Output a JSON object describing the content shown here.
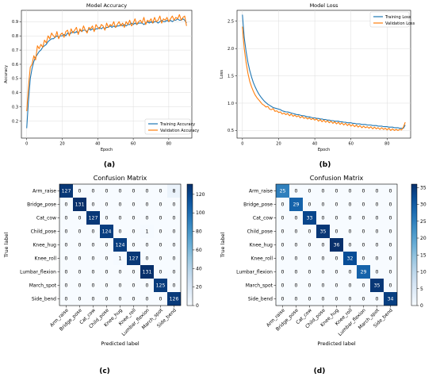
{
  "panels": {
    "a": "(a)",
    "b": "(b)",
    "c": "(c)",
    "d": "(d)"
  },
  "chart_data": [
    {
      "type": "line",
      "panel": "a",
      "title": "Model Accuracy",
      "xlabel": "Epoch",
      "ylabel": "Accuracy",
      "xlim": [
        -3,
        93
      ],
      "ylim": [
        0.08,
        0.98
      ],
      "xticks": [
        0,
        20,
        40,
        60,
        80
      ],
      "yticks": [
        0.2,
        0.3,
        0.4,
        0.5,
        0.6,
        0.7,
        0.8,
        0.9
      ],
      "legend_position": "lower-right",
      "series": [
        {
          "name": "Training Accuracy",
          "color": "#1f77b4",
          "x": [
            0,
            1,
            2,
            3,
            4,
            5,
            6,
            7,
            8,
            9,
            10,
            11,
            12,
            13,
            14,
            15,
            16,
            17,
            18,
            19,
            20,
            21,
            22,
            23,
            24,
            25,
            26,
            27,
            28,
            29,
            30,
            31,
            32,
            33,
            34,
            35,
            36,
            37,
            38,
            39,
            40,
            41,
            42,
            43,
            44,
            45,
            46,
            47,
            48,
            49,
            50,
            51,
            52,
            53,
            54,
            55,
            56,
            57,
            58,
            59,
            60,
            61,
            62,
            63,
            64,
            65,
            66,
            67,
            68,
            69,
            70,
            71,
            72,
            73,
            74,
            75,
            76,
            77,
            78,
            79,
            80,
            81,
            82,
            83,
            84,
            85,
            86,
            87,
            88,
            89,
            90
          ],
          "y": [
            0.15,
            0.35,
            0.5,
            0.57,
            0.62,
            0.65,
            0.67,
            0.69,
            0.7,
            0.72,
            0.73,
            0.74,
            0.76,
            0.77,
            0.78,
            0.78,
            0.79,
            0.8,
            0.79,
            0.8,
            0.8,
            0.81,
            0.8,
            0.82,
            0.81,
            0.82,
            0.83,
            0.82,
            0.83,
            0.82,
            0.84,
            0.83,
            0.84,
            0.84,
            0.83,
            0.85,
            0.84,
            0.85,
            0.84,
            0.85,
            0.85,
            0.86,
            0.85,
            0.86,
            0.85,
            0.86,
            0.86,
            0.87,
            0.86,
            0.87,
            0.86,
            0.87,
            0.87,
            0.88,
            0.87,
            0.88,
            0.87,
            0.88,
            0.88,
            0.89,
            0.88,
            0.89,
            0.88,
            0.89,
            0.89,
            0.89,
            0.88,
            0.89,
            0.9,
            0.89,
            0.9,
            0.89,
            0.9,
            0.9,
            0.89,
            0.9,
            0.91,
            0.9,
            0.9,
            0.91,
            0.9,
            0.91,
            0.9,
            0.91,
            0.91,
            0.92,
            0.91,
            0.91,
            0.92,
            0.91,
            0.89
          ]
        },
        {
          "name": "Validation Accuracy",
          "color": "#ff7f0e",
          "x": [
            0,
            1,
            2,
            3,
            4,
            5,
            6,
            7,
            8,
            9,
            10,
            11,
            12,
            13,
            14,
            15,
            16,
            17,
            18,
            19,
            20,
            21,
            22,
            23,
            24,
            25,
            26,
            27,
            28,
            29,
            30,
            31,
            32,
            33,
            34,
            35,
            36,
            37,
            38,
            39,
            40,
            41,
            42,
            43,
            44,
            45,
            46,
            47,
            48,
            49,
            50,
            51,
            52,
            53,
            54,
            55,
            56,
            57,
            58,
            59,
            60,
            61,
            62,
            63,
            64,
            65,
            66,
            67,
            68,
            69,
            70,
            71,
            72,
            73,
            74,
            75,
            76,
            77,
            78,
            79,
            80,
            81,
            82,
            83,
            84,
            85,
            86,
            87,
            88,
            89,
            90
          ],
          "y": [
            0.27,
            0.45,
            0.58,
            0.6,
            0.66,
            0.63,
            0.73,
            0.71,
            0.74,
            0.72,
            0.77,
            0.75,
            0.8,
            0.78,
            0.82,
            0.8,
            0.79,
            0.83,
            0.78,
            0.81,
            0.82,
            0.79,
            0.83,
            0.84,
            0.8,
            0.85,
            0.82,
            0.84,
            0.86,
            0.81,
            0.85,
            0.83,
            0.87,
            0.84,
            0.82,
            0.86,
            0.85,
            0.87,
            0.83,
            0.88,
            0.86,
            0.85,
            0.88,
            0.87,
            0.84,
            0.89,
            0.86,
            0.88,
            0.87,
            0.9,
            0.86,
            0.88,
            0.9,
            0.87,
            0.89,
            0.86,
            0.9,
            0.88,
            0.91,
            0.87,
            0.89,
            0.92,
            0.88,
            0.9,
            0.91,
            0.89,
            0.93,
            0.88,
            0.91,
            0.9,
            0.92,
            0.89,
            0.93,
            0.9,
            0.91,
            0.94,
            0.89,
            0.92,
            0.91,
            0.93,
            0.9,
            0.92,
            0.94,
            0.91,
            0.93,
            0.92,
            0.95,
            0.91,
            0.93,
            0.94,
            0.87
          ]
        }
      ]
    },
    {
      "type": "line",
      "panel": "b",
      "title": "Model Loss",
      "xlabel": "Epoch",
      "ylabel": "Loss",
      "xlim": [
        -3,
        93
      ],
      "ylim": [
        0.36,
        2.7
      ],
      "xticks": [
        0,
        20,
        40,
        60,
        80
      ],
      "yticks": [
        0.5,
        1.0,
        1.5,
        2.0,
        2.5
      ],
      "legend_position": "top-right",
      "series": [
        {
          "name": "Training Loss",
          "color": "#1f77b4",
          "x": [
            0,
            1,
            2,
            3,
            4,
            5,
            6,
            7,
            8,
            9,
            10,
            11,
            12,
            13,
            14,
            15,
            16,
            17,
            18,
            19,
            20,
            21,
            22,
            23,
            24,
            25,
            26,
            27,
            28,
            29,
            30,
            31,
            32,
            33,
            34,
            35,
            36,
            37,
            38,
            39,
            40,
            41,
            42,
            43,
            44,
            45,
            46,
            47,
            48,
            49,
            50,
            51,
            52,
            53,
            54,
            55,
            56,
            57,
            58,
            59,
            60,
            61,
            62,
            63,
            64,
            65,
            66,
            67,
            68,
            69,
            70,
            71,
            72,
            73,
            74,
            75,
            76,
            77,
            78,
            79,
            80,
            81,
            82,
            83,
            84,
            85,
            86,
            87,
            88,
            89,
            90
          ],
          "y": [
            2.62,
            2.2,
            1.95,
            1.75,
            1.6,
            1.48,
            1.38,
            1.3,
            1.23,
            1.17,
            1.12,
            1.08,
            1.04,
            1.01,
            0.98,
            0.96,
            0.94,
            0.92,
            0.91,
            0.9,
            0.89,
            0.88,
            0.86,
            0.85,
            0.84,
            0.84,
            0.83,
            0.82,
            0.81,
            0.8,
            0.79,
            0.79,
            0.78,
            0.77,
            0.77,
            0.76,
            0.75,
            0.75,
            0.74,
            0.73,
            0.73,
            0.72,
            0.72,
            0.71,
            0.71,
            0.7,
            0.7,
            0.69,
            0.69,
            0.68,
            0.68,
            0.67,
            0.67,
            0.67,
            0.66,
            0.66,
            0.65,
            0.65,
            0.64,
            0.64,
            0.64,
            0.63,
            0.63,
            0.62,
            0.62,
            0.62,
            0.61,
            0.61,
            0.61,
            0.6,
            0.6,
            0.6,
            0.59,
            0.59,
            0.59,
            0.58,
            0.58,
            0.58,
            0.57,
            0.57,
            0.57,
            0.56,
            0.56,
            0.56,
            0.55,
            0.55,
            0.55,
            0.54,
            0.54,
            0.54,
            0.6
          ]
        },
        {
          "name": "Validation Loss",
          "color": "#ff7f0e",
          "x": [
            0,
            1,
            2,
            3,
            4,
            5,
            6,
            7,
            8,
            9,
            10,
            11,
            12,
            13,
            14,
            15,
            16,
            17,
            18,
            19,
            20,
            21,
            22,
            23,
            24,
            25,
            26,
            27,
            28,
            29,
            30,
            31,
            32,
            33,
            34,
            35,
            36,
            37,
            38,
            39,
            40,
            41,
            42,
            43,
            44,
            45,
            46,
            47,
            48,
            49,
            50,
            51,
            52,
            53,
            54,
            55,
            56,
            57,
            58,
            59,
            60,
            61,
            62,
            63,
            64,
            65,
            66,
            67,
            68,
            69,
            70,
            71,
            72,
            73,
            74,
            75,
            76,
            77,
            78,
            79,
            80,
            81,
            82,
            83,
            84,
            85,
            86,
            87,
            88,
            89,
            90
          ],
          "y": [
            2.4,
            2.0,
            1.75,
            1.55,
            1.4,
            1.3,
            1.22,
            1.15,
            1.1,
            1.06,
            1.02,
            0.98,
            0.96,
            0.93,
            0.94,
            0.89,
            0.88,
            0.9,
            0.85,
            0.86,
            0.83,
            0.84,
            0.8,
            0.82,
            0.79,
            0.81,
            0.77,
            0.8,
            0.76,
            0.78,
            0.75,
            0.77,
            0.73,
            0.76,
            0.72,
            0.74,
            0.71,
            0.73,
            0.7,
            0.72,
            0.69,
            0.71,
            0.67,
            0.7,
            0.66,
            0.69,
            0.65,
            0.68,
            0.64,
            0.67,
            0.63,
            0.66,
            0.62,
            0.65,
            0.61,
            0.64,
            0.6,
            0.63,
            0.59,
            0.62,
            0.58,
            0.61,
            0.57,
            0.6,
            0.56,
            0.59,
            0.55,
            0.58,
            0.55,
            0.57,
            0.54,
            0.57,
            0.53,
            0.56,
            0.53,
            0.55,
            0.52,
            0.55,
            0.52,
            0.54,
            0.51,
            0.54,
            0.5,
            0.53,
            0.5,
            0.52,
            0.5,
            0.52,
            0.51,
            0.56,
            0.65
          ]
        }
      ]
    },
    {
      "type": "heatmap",
      "panel": "c",
      "title": "Confusion Matrix",
      "xlabel": "Predicted label",
      "ylabel": "True label",
      "labels": [
        "Arm_raise",
        "Bridge_pose",
        "Cat_cow",
        "Child_pose",
        "Knee_hug",
        "Knee_roll",
        "Lumbar_flexion",
        "March_spot",
        "Side_bend"
      ],
      "matrix": [
        [
          127,
          0,
          0,
          0,
          0,
          0,
          0,
          0,
          8
        ],
        [
          0,
          131,
          0,
          0,
          0,
          0,
          0,
          0,
          0
        ],
        [
          0,
          0,
          127,
          0,
          0,
          0,
          0,
          0,
          0
        ],
        [
          0,
          0,
          0,
          124,
          0,
          0,
          1,
          0,
          0
        ],
        [
          0,
          0,
          0,
          0,
          124,
          0,
          0,
          0,
          0
        ],
        [
          0,
          0,
          0,
          0,
          1,
          127,
          0,
          0,
          0
        ],
        [
          0,
          0,
          0,
          0,
          0,
          0,
          131,
          0,
          0
        ],
        [
          0,
          0,
          0,
          0,
          0,
          0,
          0,
          125,
          0
        ],
        [
          0,
          0,
          0,
          0,
          0,
          0,
          0,
          0,
          126
        ]
      ],
      "colorbar_ticks": [
        0,
        20,
        40,
        60,
        80,
        100,
        120
      ],
      "colorbar_range": [
        0,
        131
      ]
    },
    {
      "type": "heatmap",
      "panel": "d",
      "title": "Confusion Matrix",
      "xlabel": "Predicted label",
      "ylabel": "True label",
      "labels": [
        "Arm_raise",
        "Bridge_pose",
        "Cat_cow",
        "Child_pose",
        "Knee_hug",
        "Knee_roll",
        "Lumbar_flexion",
        "March_spot",
        "Side_bend"
      ],
      "matrix": [
        [
          25,
          0,
          0,
          0,
          0,
          0,
          0,
          0,
          0
        ],
        [
          0,
          29,
          0,
          0,
          0,
          0,
          0,
          0,
          0
        ],
        [
          0,
          0,
          33,
          0,
          0,
          0,
          0,
          0,
          0
        ],
        [
          0,
          0,
          0,
          35,
          0,
          0,
          0,
          0,
          0
        ],
        [
          0,
          0,
          0,
          0,
          36,
          0,
          0,
          0,
          0
        ],
        [
          0,
          0,
          0,
          0,
          0,
          32,
          0,
          0,
          0
        ],
        [
          0,
          0,
          0,
          0,
          0,
          0,
          29,
          0,
          0
        ],
        [
          0,
          0,
          0,
          0,
          0,
          0,
          0,
          35,
          0
        ],
        [
          0,
          0,
          0,
          0,
          0,
          0,
          0,
          0,
          34
        ]
      ],
      "colorbar_ticks": [
        0,
        5,
        10,
        15,
        20,
        25,
        30,
        35
      ],
      "colorbar_range": [
        0,
        36
      ]
    }
  ]
}
